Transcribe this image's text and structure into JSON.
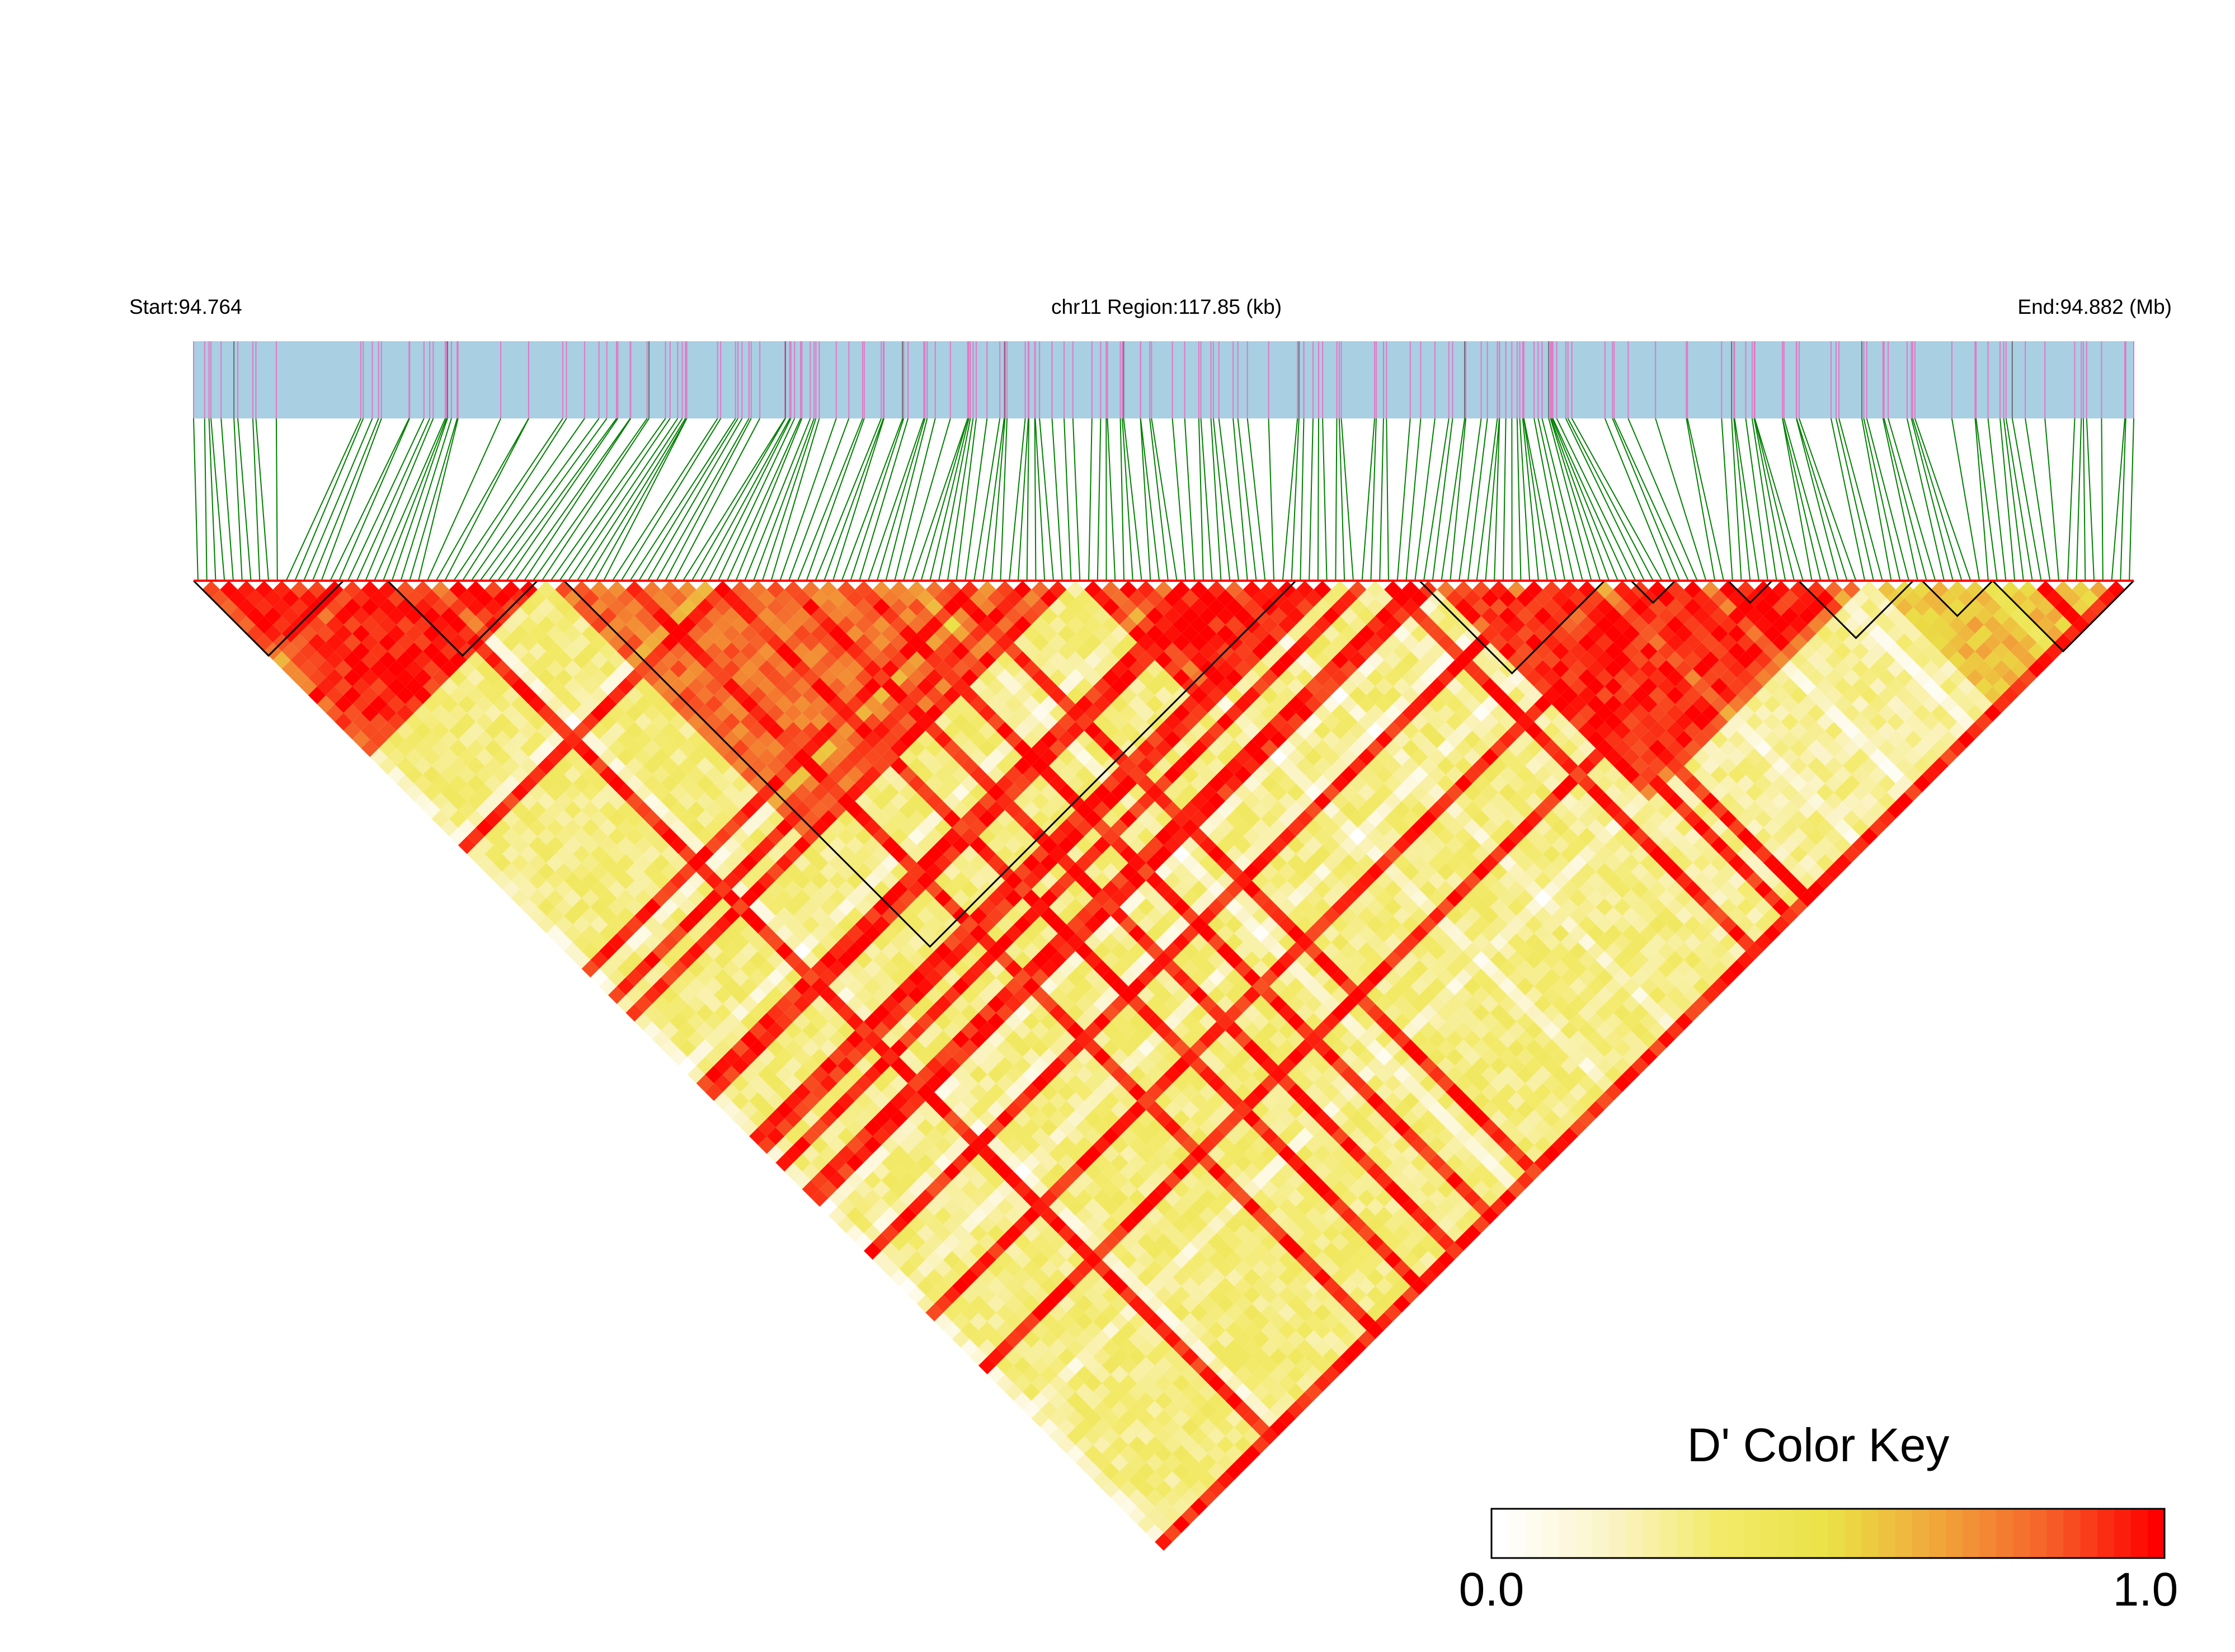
{
  "header": {
    "start_label": "Start:94.764",
    "region_label": "chr11 Region:117.85 (kb)",
    "end_label": "End:94.882 (Mb)"
  },
  "color_key": {
    "title": "D' Color Key",
    "min_label": "0.0",
    "max_label": "1.0",
    "stops": [
      "#ffffff",
      "#fbf4c8",
      "#f3ea6a",
      "#eae246",
      "#f1a63a",
      "#f5622a",
      "#ff0000"
    ]
  },
  "colors": {
    "snp_track": "#a8cfe2",
    "snp_marker": "#e477c6",
    "snp_marker_dark": "#6b6b6b",
    "connector_line": "#008000",
    "ld_high": "#ff0000",
    "block_outline": "#000000"
  },
  "chart_data": {
    "type": "heatmap",
    "title": "D' Color Key",
    "chromosome": "chr11",
    "region_start_mb": 94.764,
    "region_end_mb": 94.882,
    "region_length_kb": 117.85,
    "snp_count": 220,
    "value_range": [
      0.0,
      1.0
    ],
    "regions": [
      {
        "from_snp": 0,
        "to_snp": 40,
        "d_prime": 0.95
      },
      {
        "from_snp": 40,
        "to_snp": 100,
        "d_prime": 0.8
      },
      {
        "from_snp": 100,
        "to_snp": 130,
        "d_prime": 0.97
      },
      {
        "from_snp": 130,
        "to_snp": 220,
        "d_prime": 0.25
      },
      {
        "from_snp": 140,
        "to_snp": 190,
        "d_prime": 0.95
      },
      {
        "from_snp": 190,
        "to_snp": 220,
        "d_prime": 0.6
      }
    ],
    "haplotype_blocks": [
      {
        "from_snp": 0,
        "to_snp": 16
      },
      {
        "from_snp": 22,
        "to_snp": 38
      },
      {
        "from_snp": 42,
        "to_snp": 124
      },
      {
        "from_snp": 139,
        "to_snp": 159
      },
      {
        "from_snp": 163,
        "to_snp": 167
      },
      {
        "from_snp": 174,
        "to_snp": 178
      },
      {
        "from_snp": 182,
        "to_snp": 194
      },
      {
        "from_snp": 196,
        "to_snp": 203
      },
      {
        "from_snp": 204,
        "to_snp": 219
      }
    ]
  }
}
